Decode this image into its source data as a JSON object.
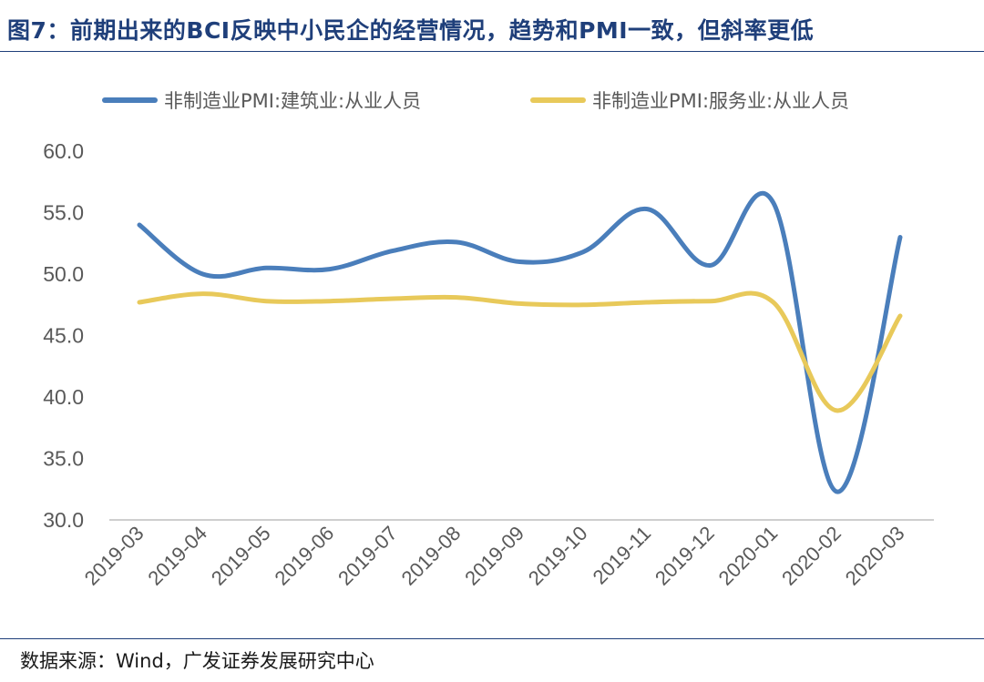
{
  "header": {
    "title": "图7：前期出来的BCI反映中小民企的经营情况，趋势和PMI一致，但斜率更低"
  },
  "footer": {
    "source": "数据来源：Wind，广发证券发展研究中心"
  },
  "chart_data": {
    "type": "line",
    "title": "",
    "xlabel": "",
    "ylabel": "",
    "categories": [
      "2019-03",
      "2019-04",
      "2019-05",
      "2019-06",
      "2019-07",
      "2019-08",
      "2019-09",
      "2019-10",
      "2019-11",
      "2019-12",
      "2020-01",
      "2020-02",
      "2020-03"
    ],
    "ylim": [
      30,
      60
    ],
    "yticks": [
      "60.0",
      "55.0",
      "50.0",
      "45.0",
      "40.0",
      "35.0",
      "30.0"
    ],
    "legend_position": "top",
    "grid": false,
    "series": [
      {
        "name": "非制造业PMI:建筑业:从业人员",
        "color": "#4a7ebb",
        "values": [
          54.0,
          50.0,
          50.5,
          50.4,
          51.9,
          52.6,
          51.0,
          51.8,
          55.3,
          50.7,
          55.8,
          32.3,
          53.0
        ]
      },
      {
        "name": "非制造业PMI:服务业:从业人员",
        "color": "#e8c95a",
        "values": [
          47.7,
          48.4,
          47.8,
          47.8,
          48.0,
          48.1,
          47.6,
          47.5,
          47.7,
          47.8,
          47.7,
          38.9,
          46.6
        ]
      }
    ]
  }
}
